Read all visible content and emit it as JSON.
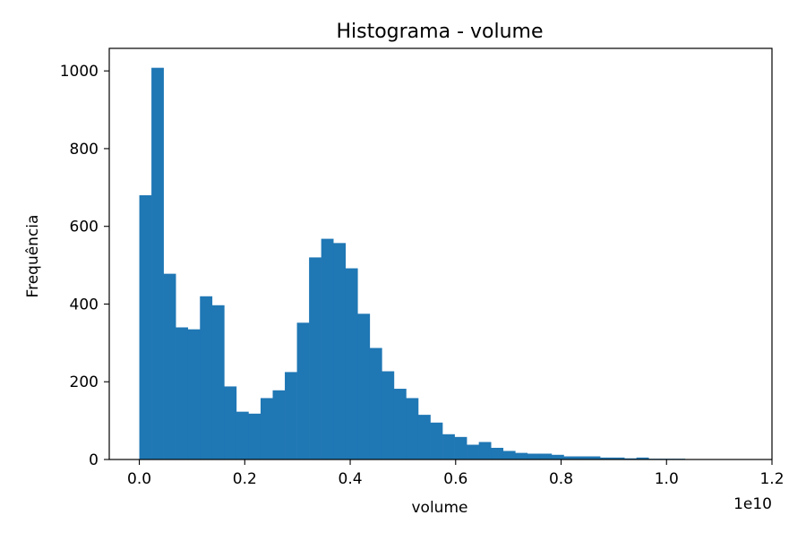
{
  "chart_data": {
    "type": "bar",
    "title": "Histograma - volume",
    "xlabel": "volume",
    "ylabel": "Frequência",
    "x_offset_label": "1e10",
    "xlim": [
      -0.057,
      1.2
    ],
    "ylim": [
      0,
      1058
    ],
    "x_ticks": [
      0.0,
      0.2,
      0.4,
      0.6,
      0.8,
      1.0,
      1.2
    ],
    "x_tick_labels": [
      "0.0",
      "0.2",
      "0.4",
      "0.6",
      "0.8",
      "1.0",
      "1.2"
    ],
    "y_ticks": [
      0,
      200,
      400,
      600,
      800,
      1000
    ],
    "y_tick_labels": [
      "0",
      "200",
      "400",
      "600",
      "800",
      "1000"
    ],
    "bar_color": "#1f77b4",
    "grid": false,
    "legend": "none",
    "bin_start": 0.0,
    "bin_width": 0.023,
    "values": [
      680,
      1008,
      478,
      340,
      335,
      420,
      397,
      188,
      123,
      118,
      158,
      178,
      225,
      352,
      520,
      568,
      557,
      492,
      375,
      287,
      227,
      182,
      158,
      115,
      95,
      65,
      58,
      38,
      45,
      30,
      22,
      17,
      15,
      15,
      12,
      8,
      8,
      8,
      5,
      5,
      3,
      5,
      2,
      2,
      2,
      1,
      1,
      1,
      1,
      1
    ]
  }
}
